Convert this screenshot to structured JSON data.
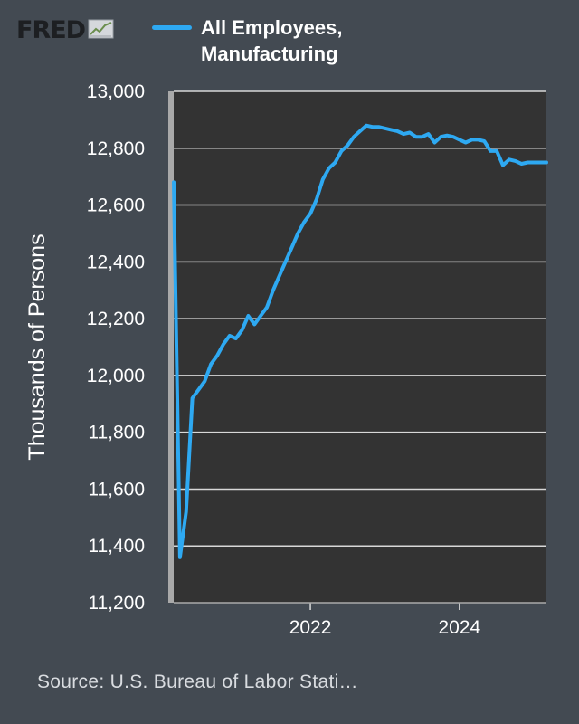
{
  "logo": {
    "text": "FRED",
    "icon": "fred-graph-icon"
  },
  "legend": {
    "label": "All Employees, Manufacturing",
    "color": "#2ea9f2"
  },
  "source": "Source: U.S. Bureau of Labor Stati…",
  "colors": {
    "background": "#434a52",
    "plot_background": "#333333",
    "gridline": "#d8d8d8",
    "line": "#2ea9f2"
  },
  "chart_data": {
    "type": "line",
    "title": "",
    "xlabel": "",
    "ylabel": "Thousands of Persons",
    "ylim": [
      11200,
      13000
    ],
    "yticks": [
      11200,
      11400,
      11600,
      11800,
      12000,
      12200,
      12400,
      12600,
      12800,
      13000
    ],
    "ytick_labels": [
      "11,200",
      "11,400",
      "11,600",
      "11,800",
      "12,000",
      "12,200",
      "12,400",
      "12,600",
      "12,800",
      "13,000"
    ],
    "xlim": [
      "2020-03",
      "2025-03"
    ],
    "xticks": [
      "2022-01",
      "2024-01"
    ],
    "xtick_labels": [
      "2022",
      "2024"
    ],
    "grid": true,
    "series": [
      {
        "name": "All Employees, Manufacturing",
        "x": [
          "2020-03",
          "2020-04",
          "2020-05",
          "2020-06",
          "2020-07",
          "2020-08",
          "2020-09",
          "2020-10",
          "2020-11",
          "2020-12",
          "2021-01",
          "2021-02",
          "2021-03",
          "2021-04",
          "2021-05",
          "2021-06",
          "2021-07",
          "2021-08",
          "2021-09",
          "2021-10",
          "2021-11",
          "2021-12",
          "2022-01",
          "2022-02",
          "2022-03",
          "2022-04",
          "2022-05",
          "2022-06",
          "2022-07",
          "2022-08",
          "2022-09",
          "2022-10",
          "2022-11",
          "2022-12",
          "2023-01",
          "2023-02",
          "2023-03",
          "2023-04",
          "2023-05",
          "2023-06",
          "2023-07",
          "2023-08",
          "2023-09",
          "2023-10",
          "2023-11",
          "2023-12",
          "2024-01",
          "2024-02",
          "2024-03",
          "2024-04",
          "2024-05",
          "2024-06",
          "2024-07",
          "2024-08",
          "2024-09",
          "2024-10",
          "2024-11",
          "2024-12",
          "2025-01",
          "2025-02",
          "2025-03"
        ],
        "y": [
          12680,
          11360,
          11520,
          11920,
          11950,
          11980,
          12040,
          12070,
          12110,
          12140,
          12130,
          12160,
          12210,
          12180,
          12210,
          12240,
          12300,
          12350,
          12400,
          12450,
          12500,
          12540,
          12570,
          12620,
          12690,
          12730,
          12750,
          12790,
          12810,
          12840,
          12860,
          12880,
          12875,
          12875,
          12870,
          12865,
          12860,
          12850,
          12855,
          12840,
          12840,
          12850,
          12820,
          12840,
          12845,
          12840,
          12830,
          12820,
          12830,
          12830,
          12825,
          12790,
          12790,
          12740,
          12760,
          12755,
          12745,
          12750,
          12750,
          12750,
          12750
        ]
      }
    ]
  }
}
